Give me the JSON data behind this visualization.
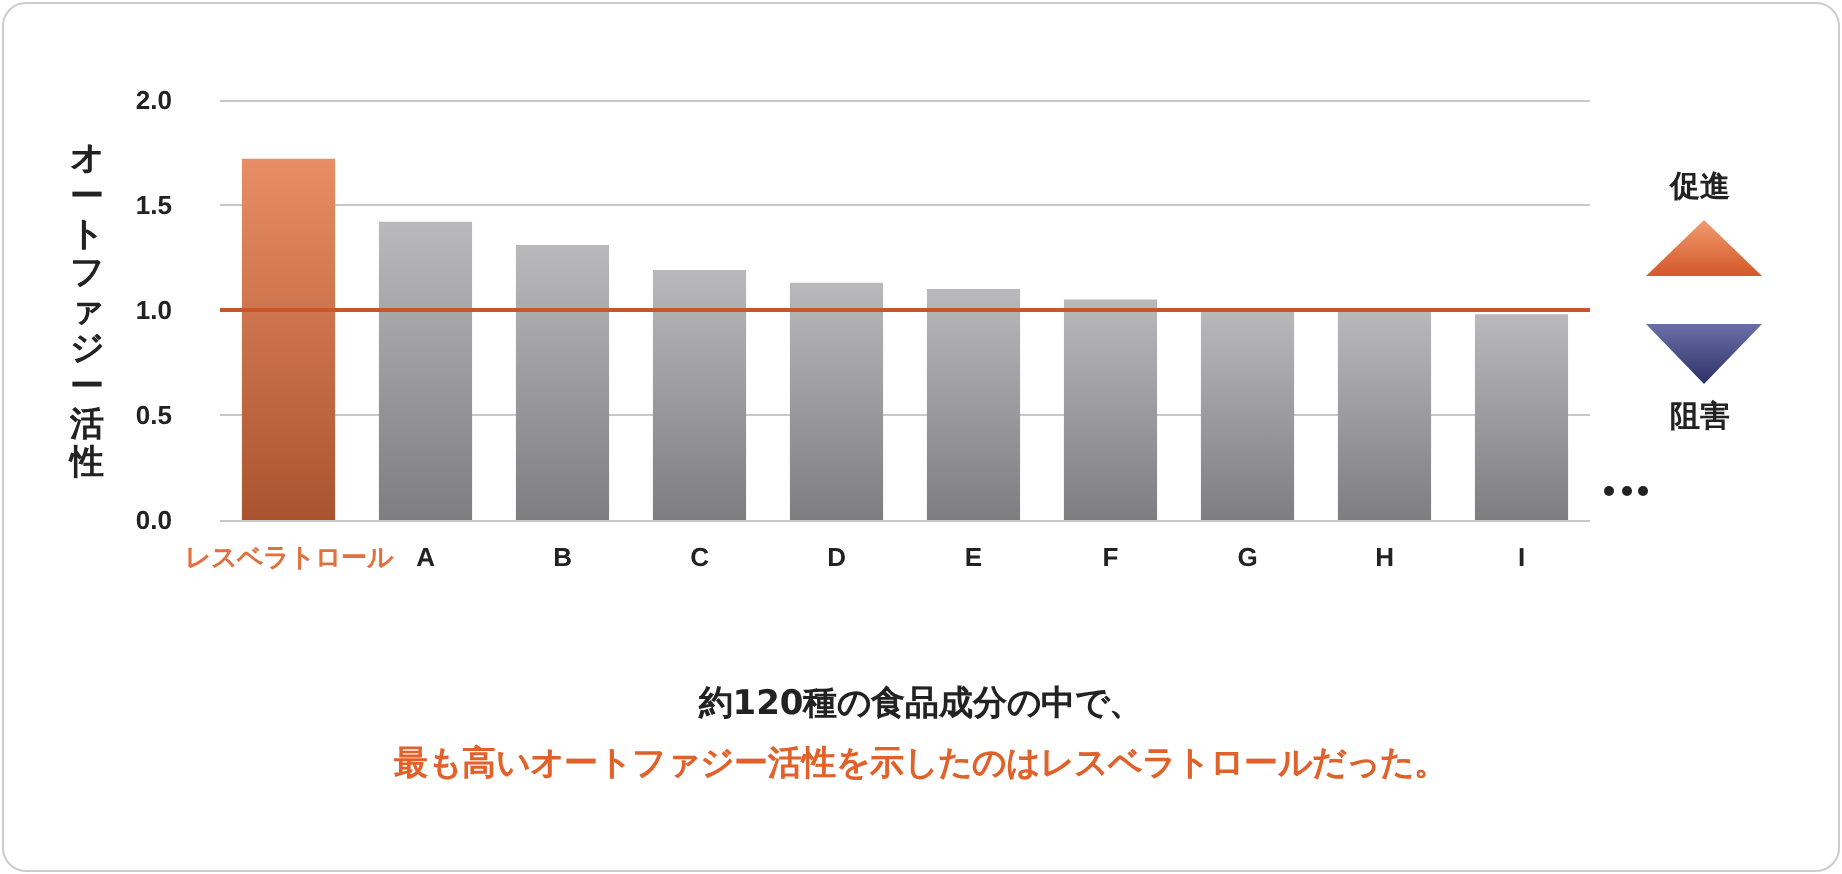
{
  "chart_data": {
    "type": "bar",
    "ylabel": "オートファジー活性",
    "categories": [
      "レスベラトロール",
      "A",
      "B",
      "C",
      "D",
      "E",
      "F",
      "G",
      "H",
      "I"
    ],
    "values": [
      1.72,
      1.42,
      1.31,
      1.19,
      1.13,
      1.1,
      1.05,
      1.0,
      1.0,
      0.98
    ],
    "colors": [
      "#e2703e",
      "#a8a8aa",
      "#a8a8aa",
      "#a8a8aa",
      "#a8a8aa",
      "#a8a8aa",
      "#a8a8aa",
      "#a8a8aa",
      "#a8a8aa",
      "#a8a8aa"
    ],
    "ylim": [
      0,
      2
    ],
    "yticks": [
      {
        "value": 0,
        "label": "0.0"
      },
      0.5,
      {
        "value": 1,
        "label": "1.0"
      },
      1.5,
      {
        "value": 2,
        "label": "2.0"
      }
    ],
    "grid": "y",
    "ref_lines": [
      {
        "axis": "y",
        "value": 1,
        "color": "#c9552a"
      }
    ],
    "annotations": [
      "促進",
      "阻害",
      "約120種の食品成分の中で、",
      "最も高いオートファジー活性を示したのはレスベラトロールだった。"
    ]
  }
}
